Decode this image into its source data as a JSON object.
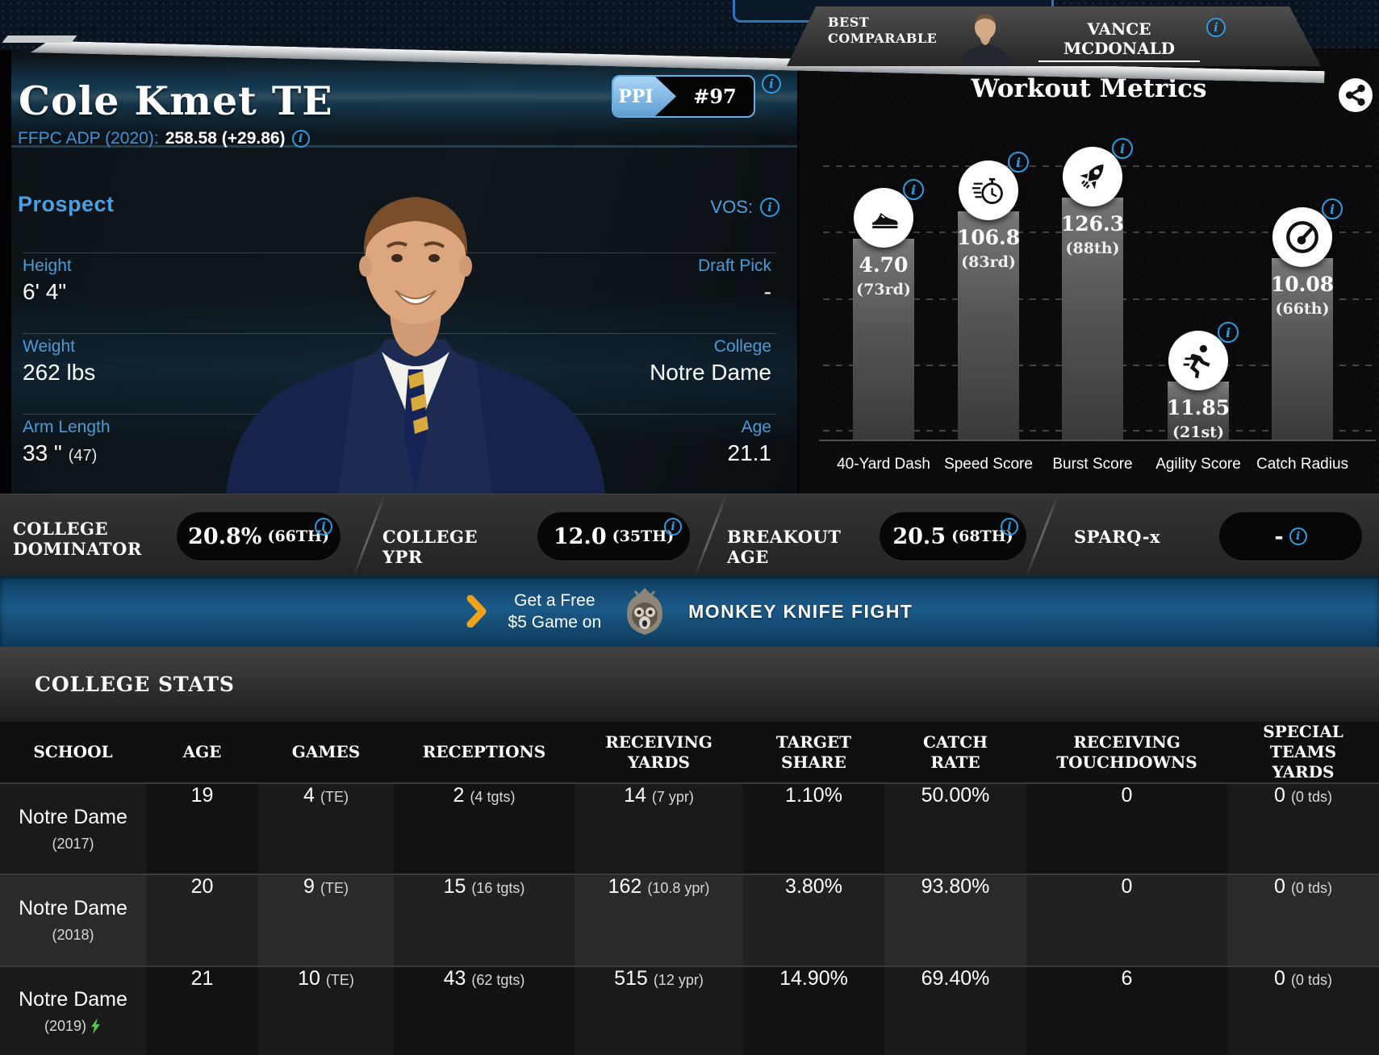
{
  "best_comparable": {
    "label_line1": "BEST",
    "label_line2": "COMPARABLE",
    "name": "VANCE MCDONALD"
  },
  "player": {
    "title": "Cole Kmet TE",
    "ppi_label": "PPI",
    "ppi_rank": "#97",
    "adp_label": "FFPC ADP (2020):",
    "adp_value": "258.58 (+29.86)"
  },
  "prospect": {
    "heading": "Prospect",
    "vos_label": "VOS:",
    "left_fields": [
      {
        "label": "Height",
        "value": "6' 4\"",
        "note": ""
      },
      {
        "label": "Weight",
        "value": "262 lbs",
        "note": ""
      },
      {
        "label": "Arm Length",
        "value": "33 \"",
        "note": "(47)"
      }
    ],
    "right_fields": [
      {
        "label": "Draft Pick",
        "value": "-"
      },
      {
        "label": "College",
        "value": "Notre Dame"
      },
      {
        "label": "Age",
        "value": "21.1"
      }
    ]
  },
  "workout": {
    "title": "Workout Metrics"
  },
  "chart_data": {
    "type": "bar",
    "title": "Workout Metrics",
    "categories": [
      "40-Yard Dash",
      "Speed Score",
      "Burst Score",
      "Agility Score",
      "Catch Radius"
    ],
    "values": [
      4.7,
      106.8,
      126.3,
      11.85,
      10.08
    ],
    "value_labels": [
      "4.70",
      "106.8",
      "126.3",
      "11.85",
      "10.08"
    ],
    "percentiles": [
      73,
      83,
      88,
      21,
      66
    ],
    "percentile_labels": [
      "(73rd)",
      "(83rd)",
      "(88th)",
      "(21st)",
      "(66th)"
    ],
    "icons": [
      "shoe-icon",
      "stopwatch-icon",
      "rocket-icon",
      "runner-icon",
      "gauge-icon"
    ],
    "ylim": [
      0,
      100
    ],
    "grid": "horizontal-dashed",
    "legend": "none"
  },
  "metric_pills": [
    {
      "label": "COLLEGE DOMINATOR",
      "value": "20.8%",
      "suffix": "(66TH)"
    },
    {
      "label": "COLLEGE YPR",
      "value": "12.0",
      "suffix": "(35TH)"
    },
    {
      "label": "BREAKOUT AGE",
      "value": "20.5",
      "suffix": "(68TH)"
    },
    {
      "label": "SPARQ-x",
      "value": "-",
      "suffix": ""
    }
  ],
  "banner": {
    "cta_line1": "Get a Free",
    "cta_line2": "$5 Game on",
    "brand": "MONKEY KNIFE FIGHT"
  },
  "college_stats": {
    "title": "COLLEGE STATS",
    "columns": [
      "SCHOOL",
      "AGE",
      "GAMES",
      "RECEPTIONS",
      "RECEIVING YARDS",
      "TARGET SHARE",
      "CATCH RATE",
      "RECEIVING TOUCHDOWNS",
      "SPECIAL TEAMS YARDS"
    ],
    "rows": [
      {
        "school": "Notre Dame",
        "year": "(2017)",
        "breakout": false,
        "age": "19",
        "games": "4",
        "games_note": "(TE)",
        "receptions": "2",
        "receptions_note": "(4 tgts)",
        "receiving_yards": "14",
        "receiving_yards_note": "(7 ypr)",
        "target_share": "1.10%",
        "catch_rate": "50.00%",
        "receiving_touchdowns": "0",
        "special_teams_yards": "0",
        "special_teams_note": "(0 tds)"
      },
      {
        "school": "Notre Dame",
        "year": "(2018)",
        "breakout": false,
        "age": "20",
        "games": "9",
        "games_note": "(TE)",
        "receptions": "15",
        "receptions_note": "(16 tgts)",
        "receiving_yards": "162",
        "receiving_yards_note": "(10.8 ypr)",
        "target_share": "3.80%",
        "catch_rate": "93.80%",
        "receiving_touchdowns": "0",
        "special_teams_yards": "0",
        "special_teams_note": "(0 tds)"
      },
      {
        "school": "Notre Dame",
        "year": "(2019)",
        "breakout": true,
        "age": "21",
        "games": "10",
        "games_note": "(TE)",
        "receptions": "43",
        "receptions_note": "(62 tgts)",
        "receiving_yards": "515",
        "receiving_yards_note": "(12 ypr)",
        "target_share": "14.90%",
        "catch_rate": "69.40%",
        "receiving_touchdowns": "6",
        "special_teams_yards": "0",
        "special_teams_note": "(0 tds)"
      }
    ]
  },
  "colors": {
    "accent_blue": "#4da0e0",
    "info_blue": "#2f9be0",
    "ppi_badge_blue": "#a9d5f6",
    "banner_blue": "#1b5a88",
    "chevron_yellow": "#f0a21a",
    "bolt_green": "#53c653",
    "bar_gray": "#6f6f6f"
  }
}
